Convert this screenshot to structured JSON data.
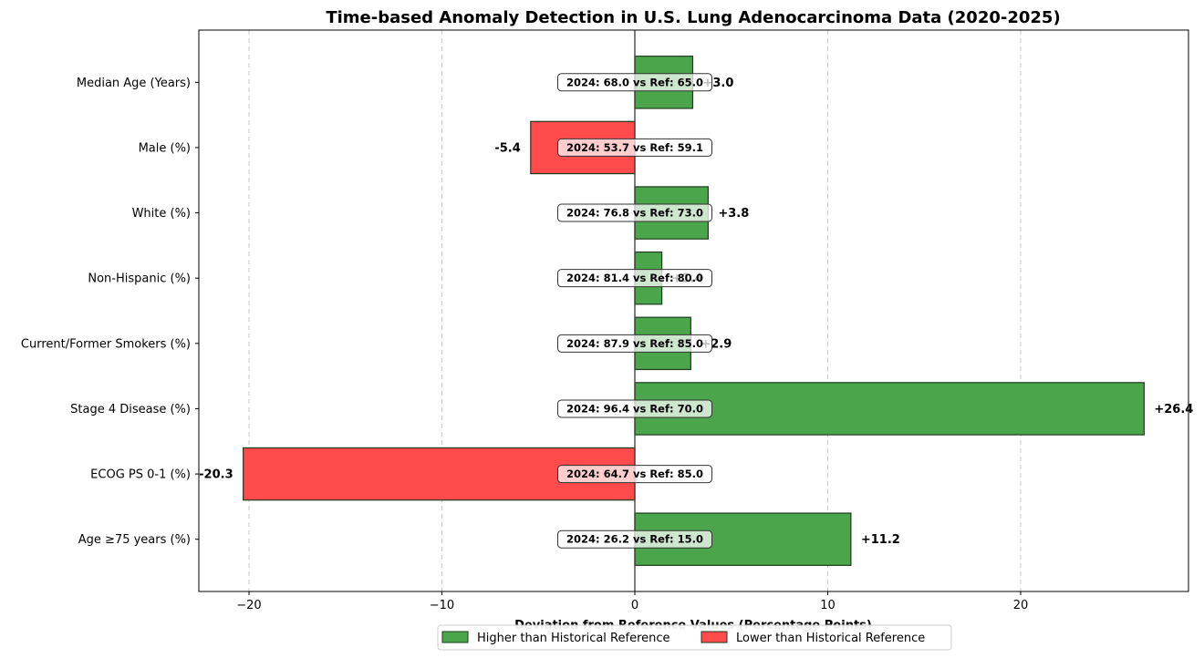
{
  "chart_data": {
    "type": "bar",
    "orientation": "horizontal",
    "title": "Time-based Anomaly Detection in U.S. Lung Adenocarcinoma Data (2020-2025)",
    "xlabel": "Deviation from Reference Values (Percentage Points)",
    "ylabel": "",
    "xlim": [
      -22.6,
      28.7
    ],
    "x_ticks": [
      -20,
      -10,
      0,
      10,
      20
    ],
    "x_tick_labels": [
      "−20",
      "−10",
      "0",
      "10",
      "20"
    ],
    "grid": "vertical dashed",
    "categories": [
      "Median Age (Years)",
      "Male (%)",
      "White (%)",
      "Non-Hispanic (%)",
      "Current/Former Smokers (%)",
      "Stage 4 Disease (%)",
      "ECOG PS 0-1 (%)",
      "Age ≥75 years (%)"
    ],
    "values": [
      3.0,
      -5.4,
      3.8,
      1.4,
      2.9,
      26.4,
      -20.3,
      11.2
    ],
    "value_labels": [
      "+3.0",
      "-5.4",
      "+3.8",
      "+1.4",
      "+2.9",
      "+26.4",
      "-20.3",
      "+11.2"
    ],
    "annotations": [
      "2024: 68.0 vs Ref: 65.0",
      "2024: 53.7 vs Ref: 59.1",
      "2024: 76.8 vs Ref: 73.0",
      "2024: 81.4 vs Ref: 80.0",
      "2024: 87.9 vs Ref: 85.0",
      "2024: 96.4 vs Ref: 70.0",
      "2024: 64.7 vs Ref: 85.0",
      "2024: 26.2 vs Ref: 15.0"
    ],
    "legend": {
      "placement": "bottom-center",
      "entries": [
        {
          "label": "Higher than Historical Reference",
          "color": "#4ba64b"
        },
        {
          "label": "Lower than Historical Reference",
          "color": "#ff4b4b"
        }
      ]
    },
    "colors": {
      "positive": "#4ba64b",
      "negative": "#ff4b4b",
      "edge": "#1f3a1f"
    }
  }
}
